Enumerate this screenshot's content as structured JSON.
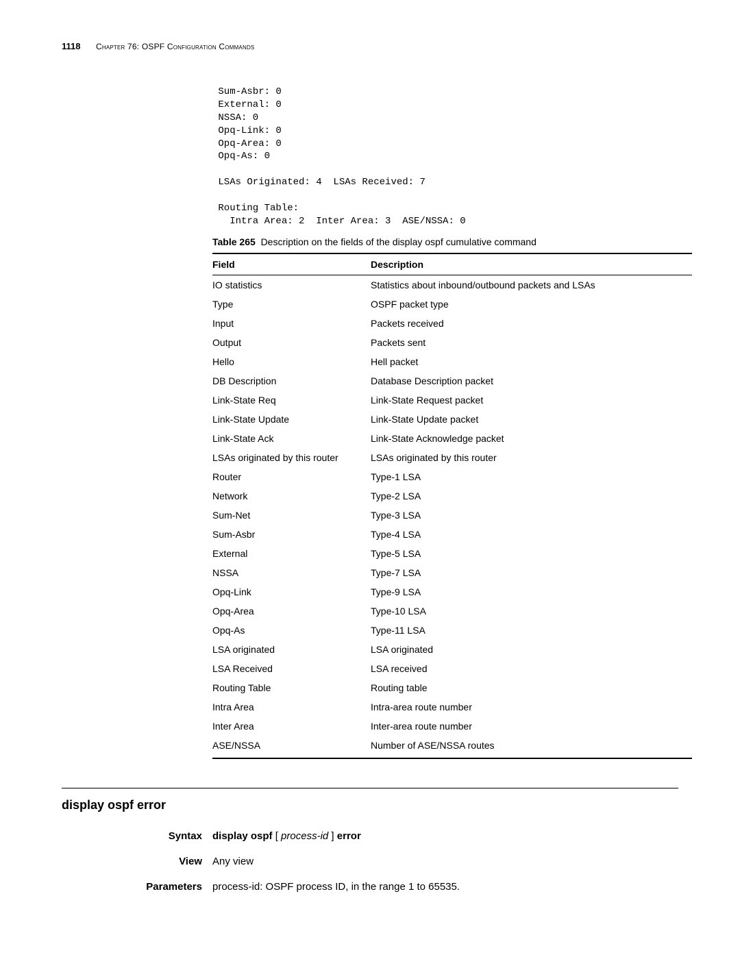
{
  "header": {
    "page_number": "1118",
    "chapter": "Chapter 76: OSPF Configuration Commands"
  },
  "mono_output": " Sum-Asbr: 0\n External: 0\n NSSA: 0\n Opq-Link: 0\n Opq-Area: 0\n Opq-As: 0\n\n LSAs Originated: 4  LSAs Received: 7\n\n Routing Table:\n   Intra Area: 2  Inter Area: 3  ASE/NSSA: 0",
  "table": {
    "caption_label": "Table 265",
    "caption_text": "Description on the fields of the display ospf cumulative command",
    "columns": [
      "Field",
      "Description"
    ],
    "rows": [
      [
        "IO statistics",
        "Statistics about inbound/outbound packets and LSAs"
      ],
      [
        "Type",
        "OSPF packet type"
      ],
      [
        "Input",
        "Packets received"
      ],
      [
        "Output",
        "Packets sent"
      ],
      [
        "Hello",
        "Hell packet"
      ],
      [
        "DB Description",
        "Database Description packet"
      ],
      [
        "Link-State Req",
        "Link-State Request packet"
      ],
      [
        "Link-State Update",
        "Link-State Update packet"
      ],
      [
        "Link-State Ack",
        "Link-State Acknowledge packet"
      ],
      [
        "LSAs originated by this router",
        "LSAs originated by this router"
      ],
      [
        "Router",
        "Type-1 LSA"
      ],
      [
        "Network",
        "Type-2 LSA"
      ],
      [
        "Sum-Net",
        "Type-3 LSA"
      ],
      [
        "Sum-Asbr",
        "Type-4 LSA"
      ],
      [
        "External",
        "Type-5 LSA"
      ],
      [
        "NSSA",
        "Type-7 LSA"
      ],
      [
        "Opq-Link",
        "Type-9 LSA"
      ],
      [
        "Opq-Area",
        "Type-10 LSA"
      ],
      [
        "Opq-As",
        "Type-11 LSA"
      ],
      [
        "LSA originated",
        "LSA originated"
      ],
      [
        "LSA Received",
        "LSA received"
      ],
      [
        "Routing Table",
        "Routing table"
      ],
      [
        "Intra Area",
        "Intra-area route number"
      ],
      [
        "Inter Area",
        "Inter-area route number"
      ],
      [
        "ASE/NSSA",
        "Number of ASE/NSSA routes"
      ]
    ]
  },
  "section": {
    "title": "display ospf error",
    "syntax_label": "Syntax",
    "syntax_parts": {
      "p1": "display ospf",
      "p2": " [ ",
      "p3": "process-id",
      "p4": " ] ",
      "p5": "error"
    },
    "view_label": "View",
    "view_body": "Any view",
    "params_label": "Parameters",
    "params_ital": "process-id",
    "params_rest": ": OSPF process ID, in the range 1 to 65535."
  }
}
